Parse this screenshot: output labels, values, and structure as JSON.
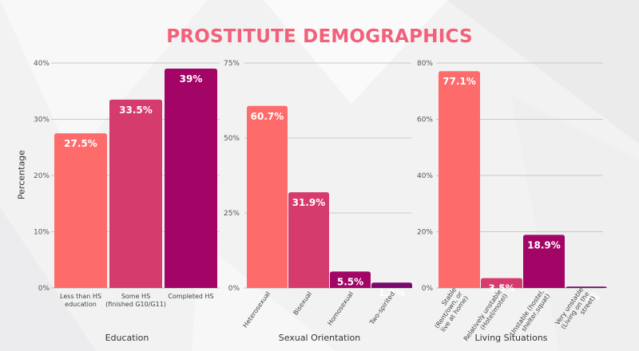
{
  "title": "PROSTITUTE DEMOGRAPHICS",
  "y_axis_label": "Percentage",
  "chart_data": [
    {
      "type": "bar",
      "xlabel": "Education",
      "ylim": [
        0,
        40
      ],
      "yticks": [
        "0%",
        "10%",
        "20%",
        "30%",
        "40%"
      ],
      "categories": [
        [
          "Less than HS",
          "education"
        ],
        [
          "Some HS",
          "(finished G10/G11)"
        ],
        [
          "Completed HS"
        ]
      ],
      "values": [
        27.5,
        33.5,
        39
      ],
      "labels": [
        "27.5%",
        "33.5%",
        "39%"
      ],
      "colors": [
        "#fe6b6b",
        "#d63b6e",
        "#a20566"
      ]
    },
    {
      "type": "bar",
      "xlabel": "Sexual Orientation",
      "ylim": [
        0,
        75
      ],
      "yticks": [
        "0%",
        "25%",
        "50%",
        "75%"
      ],
      "categories": [
        [
          "Heterosexual"
        ],
        [
          "Bisexual"
        ],
        [
          "Homosexual"
        ],
        [
          "Two-spirited"
        ]
      ],
      "values": [
        60.7,
        31.9,
        5.5,
        1.8
      ],
      "labels": [
        "60.7%",
        "31.9%",
        "5.5%",
        "1.8%"
      ],
      "colors": [
        "#fe6b6b",
        "#d63b6e",
        "#a20566",
        "#7a0a6e"
      ]
    },
    {
      "type": "bar",
      "xlabel": "Living Situations",
      "ylim": [
        0,
        80
      ],
      "yticks": [
        "0%",
        "20%",
        "40%",
        "60%",
        "80%"
      ],
      "categories": [
        [
          "Stable",
          "(Rent/own, or",
          "live at home)"
        ],
        [
          "Relatively unstable",
          "(Hotel/motel)"
        ],
        [
          "Unstable (hostel,",
          "shelter,squat)"
        ],
        [
          "Very unstable",
          "(Living on the",
          "street)"
        ]
      ],
      "values": [
        77.1,
        3.5,
        18.9,
        0.5
      ],
      "labels": [
        "77.1%",
        "3.5%",
        "18.9%",
        "0.5%"
      ],
      "colors": [
        "#fe6b6b",
        "#d63b6e",
        "#a20566",
        "#7a0a6e"
      ]
    }
  ]
}
